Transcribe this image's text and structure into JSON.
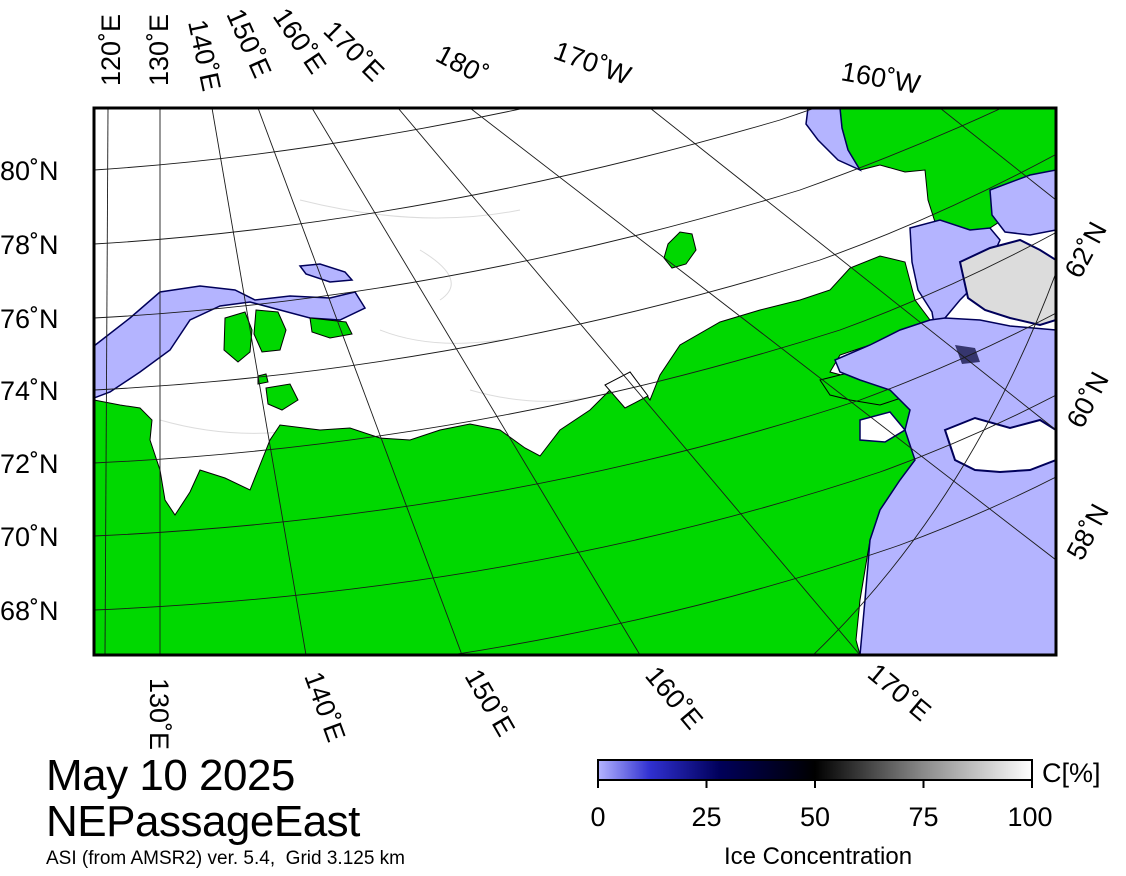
{
  "title": {
    "date": "May 10 2025",
    "region": "NEPassageEast",
    "source_line": "ASI (from AMSR2) ver. 5.4,  Grid 3.125 km"
  },
  "colors": {
    "land": "#00d800",
    "open_water": "#b4b4ff",
    "ice_high": "#ffffff",
    "ice_mid": "#000000",
    "ice_low": "#00005a",
    "frame": "#000000"
  },
  "map": {
    "longitude_labels_top": [
      "120˚E",
      "130˚E",
      "140˚E",
      "150˚E",
      "160˚E",
      "170˚E",
      "180˚",
      "170˚W",
      "160˚W"
    ],
    "longitude_labels_bottom": [
      "130˚E",
      "140˚E",
      "150˚E",
      "160˚E",
      "170˚E"
    ],
    "latitude_labels_left": [
      "80˚N",
      "78˚N",
      "76˚N",
      "74˚N",
      "72˚N",
      "70˚N",
      "68˚N"
    ],
    "latitude_labels_right": [
      "62˚N",
      "60˚N",
      "58˚N"
    ]
  },
  "colorbar": {
    "title": "Ice Concentration",
    "unit": "C[%]",
    "ticks": [
      "0",
      "25",
      "50",
      "75",
      "100"
    ],
    "range": [
      0,
      100
    ]
  }
}
